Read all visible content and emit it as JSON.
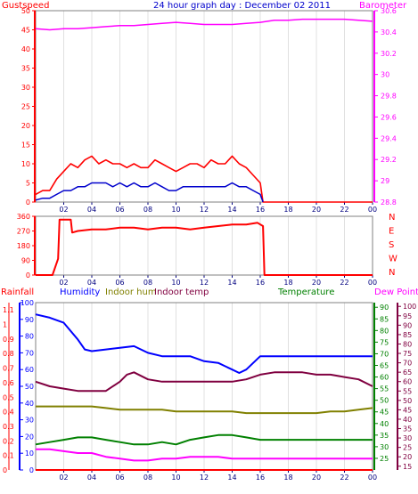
{
  "title": "24 hour graph day : December 02 2011",
  "colors": {
    "gust": "#ff0000",
    "wind": "#0000cc",
    "baro": "#ff00ff",
    "winddir": "#ff0000",
    "rain": "#ff0000",
    "humidity": "#0000ff",
    "indoor_hum": "#808000",
    "indoor_temp": "#800040",
    "temperature": "#008000",
    "dewpoint": "#ff00ff",
    "axis_gust": "#ff0000",
    "axis_baro": "#ff00ff",
    "axis_rain": "#ff0000",
    "axis_hum": "#0000ff",
    "axis_temp": "#008000",
    "axis_dew": "#800040",
    "annotation": "#ffff00"
  },
  "chart_data": [
    {
      "type": "line",
      "title": "24 hour graph day : December 02 2011",
      "labels": {
        "left": "Gustspeed",
        "right": "Barometer"
      },
      "x_ticks": [
        "02",
        "04",
        "06",
        "08",
        "10",
        "12",
        "14",
        "16",
        "18",
        "20",
        "22",
        "00"
      ],
      "xlim": [
        0,
        24
      ],
      "left_axis": {
        "ticks": [
          "0",
          "5",
          "10",
          "15",
          "20",
          "25",
          "30",
          "35",
          "40",
          "45",
          "50"
        ],
        "ylim": [
          0,
          50
        ]
      },
      "right_axis": {
        "ticks": [
          "28.8",
          "29",
          "29.2",
          "29.4",
          "29.6",
          "29.8",
          "30",
          "30.2",
          "30.4",
          "30.6"
        ],
        "ylim": [
          28.8,
          30.6
        ]
      },
      "series": [
        {
          "key": "gust",
          "axis": "left",
          "x": [
            0,
            0.5,
            1,
            1.5,
            2,
            2.5,
            3,
            3.5,
            4,
            4.5,
            5,
            5.5,
            6,
            6.5,
            7,
            7.5,
            8,
            8.5,
            9,
            9.5,
            10,
            10.5,
            11,
            11.5,
            12,
            12.5,
            13,
            13.5,
            14,
            14.5,
            15,
            15.5,
            16,
            16.2,
            24
          ],
          "y": [
            2,
            3,
            3,
            6,
            8,
            10,
            9,
            11,
            12,
            10,
            11,
            10,
            10,
            9,
            10,
            9,
            9,
            11,
            10,
            9,
            8,
            9,
            10,
            10,
            9,
            11,
            10,
            10,
            12,
            10,
            9,
            7,
            5,
            0,
            0
          ]
        },
        {
          "key": "wind",
          "axis": "left",
          "x": [
            0,
            0.5,
            1,
            1.5,
            2,
            2.5,
            3,
            3.5,
            4,
            4.5,
            5,
            5.5,
            6,
            6.5,
            7,
            7.5,
            8,
            8.5,
            9,
            9.5,
            10,
            10.5,
            11,
            11.5,
            12,
            12.5,
            13,
            13.5,
            14,
            14.5,
            15,
            15.5,
            16,
            16.2
          ],
          "y": [
            0.5,
            1,
            1,
            2,
            3,
            3,
            4,
            4,
            5,
            5,
            5,
            4,
            5,
            4,
            5,
            4,
            4,
            5,
            4,
            3,
            3,
            4,
            4,
            4,
            4,
            4,
            4,
            4,
            5,
            4,
            4,
            3,
            2,
            0
          ]
        },
        {
          "key": "baro",
          "axis": "right",
          "x": [
            0,
            1,
            2,
            3,
            4,
            5,
            6,
            7,
            8,
            9,
            10,
            11,
            12,
            13,
            14,
            15,
            16,
            17,
            18,
            19,
            20,
            21,
            22,
            23,
            24
          ],
          "y": [
            30.43,
            30.42,
            30.43,
            30.43,
            30.44,
            30.45,
            30.46,
            30.46,
            30.47,
            30.48,
            30.49,
            30.48,
            30.47,
            30.47,
            30.47,
            30.48,
            30.49,
            30.51,
            30.51,
            30.52,
            30.52,
            30.52,
            30.52,
            30.51,
            30.5
          ]
        }
      ]
    },
    {
      "type": "line",
      "labels": {
        "right": [
          "N",
          "W",
          "S",
          "E",
          "N"
        ]
      },
      "left_axis": {
        "ticks": [
          "0",
          "90",
          "180",
          "270",
          "360"
        ],
        "ylim": [
          0,
          360
        ]
      },
      "xlim": [
        0,
        24
      ],
      "series": [
        {
          "key": "winddir",
          "x": [
            0,
            1.2,
            1.6,
            1.7,
            2.5,
            2.6,
            3,
            4,
            5,
            6,
            7,
            8,
            9,
            10,
            11,
            12,
            13,
            14,
            15,
            15.8,
            16.2,
            16.3,
            24
          ],
          "y": [
            0,
            0,
            100,
            340,
            340,
            260,
            270,
            280,
            280,
            290,
            290,
            280,
            290,
            290,
            280,
            290,
            300,
            310,
            310,
            320,
            300,
            0,
            0
          ]
        }
      ]
    },
    {
      "type": "line",
      "labels": {
        "rainfall": "Rainfall",
        "humidity": "Humidity",
        "indoor_hum": "Indoor hum",
        "indoor_temp": "Indoor temp",
        "temperature": "Temperature",
        "dewpoint": "Dew Point"
      },
      "xlim": [
        0,
        24
      ],
      "axes": {
        "rain": {
          "ticks": [
            "0",
            "0.1",
            "0.2",
            "0.3",
            "0.4",
            "0.5",
            "0.6",
            "0.7",
            "0.8",
            "0.9",
            "1",
            "1.1"
          ],
          "ylim": [
            0,
            1.15
          ]
        },
        "hum": {
          "ticks": [
            "0",
            "10",
            "20",
            "30",
            "40",
            "50",
            "60",
            "70",
            "80",
            "90",
            "100"
          ],
          "ylim": [
            0,
            100
          ]
        },
        "temp": {
          "ticks": [
            "25",
            "30",
            "35",
            "40",
            "45",
            "50",
            "55",
            "60",
            "65",
            "70",
            "75",
            "80",
            "85",
            "90"
          ],
          "ylim": [
            20,
            92
          ]
        },
        "dew": {
          "ticks": [
            "15",
            "20",
            "25",
            "30",
            "35",
            "40",
            "45",
            "50",
            "55",
            "60",
            "65",
            "70",
            "75",
            "80",
            "85",
            "90",
            "95",
            "100"
          ],
          "ylim": [
            13,
            102
          ]
        }
      },
      "series": [
        {
          "key": "rain",
          "axis": "rain",
          "x": [
            0,
            24
          ],
          "y": [
            0,
            0
          ]
        },
        {
          "key": "humidity",
          "axis": "hum",
          "x": [
            0,
            1,
            2,
            3,
            3.5,
            4,
            5,
            6,
            7,
            8,
            9,
            10,
            11,
            12,
            13,
            14,
            14.5,
            15,
            16,
            17,
            18,
            19,
            20,
            21,
            22,
            23,
            24
          ],
          "y": [
            93,
            91,
            88,
            78,
            72,
            71,
            72,
            73,
            74,
            70,
            68,
            68,
            68,
            65,
            64,
            60,
            58,
            60,
            68,
            68,
            68,
            68,
            68,
            68,
            68,
            68,
            68
          ]
        },
        {
          "key": "indoor_temp",
          "axis": "temp",
          "x": [
            0,
            1,
            2,
            3,
            4,
            5,
            6,
            6.5,
            7,
            8,
            9,
            10,
            11,
            12,
            13,
            14,
            15,
            16,
            17,
            18,
            19,
            20,
            21,
            22,
            23,
            24
          ],
          "y": [
            58,
            56,
            55,
            54,
            54,
            54,
            58,
            61,
            62,
            59,
            58,
            58,
            58,
            58,
            58,
            58,
            59,
            61,
            62,
            62,
            62,
            61,
            61,
            60,
            59,
            56
          ]
        },
        {
          "key": "indoor_hum",
          "axis": "hum",
          "x": [
            0,
            1,
            2,
            3,
            4,
            5,
            6,
            7,
            8,
            9,
            10,
            11,
            12,
            13,
            14,
            15,
            16,
            17,
            18,
            19,
            20,
            21,
            22,
            23,
            24
          ],
          "y": [
            38,
            38,
            38,
            38,
            38,
            37,
            36,
            36,
            36,
            36,
            35,
            35,
            35,
            35,
            35,
            34,
            34,
            34,
            34,
            34,
            34,
            35,
            35,
            36,
            37
          ]
        },
        {
          "key": "temperature",
          "axis": "temp",
          "x": [
            0,
            1,
            2,
            3,
            4,
            5,
            6,
            7,
            8,
            9,
            10,
            11,
            12,
            13,
            14,
            15,
            16,
            17,
            18,
            19,
            20,
            21,
            22,
            23,
            24
          ],
          "y": [
            31,
            32,
            33,
            34,
            34,
            33,
            32,
            31,
            31,
            32,
            31,
            33,
            34,
            35,
            35,
            34,
            33,
            33,
            33,
            33,
            33,
            33,
            33,
            33,
            33
          ]
        },
        {
          "key": "dewpoint",
          "axis": "dew",
          "x": [
            0,
            1,
            2,
            3,
            4,
            5,
            6,
            7,
            8,
            9,
            10,
            11,
            12,
            13,
            14,
            15,
            16,
            17,
            18,
            19,
            20,
            21,
            22,
            23,
            24
          ],
          "y": [
            24,
            24,
            23,
            22,
            22,
            20,
            19,
            18,
            18,
            19,
            19,
            20,
            20,
            20,
            19,
            19,
            19,
            19,
            19,
            19,
            19,
            19,
            19,
            19,
            19
          ]
        }
      ]
    }
  ]
}
